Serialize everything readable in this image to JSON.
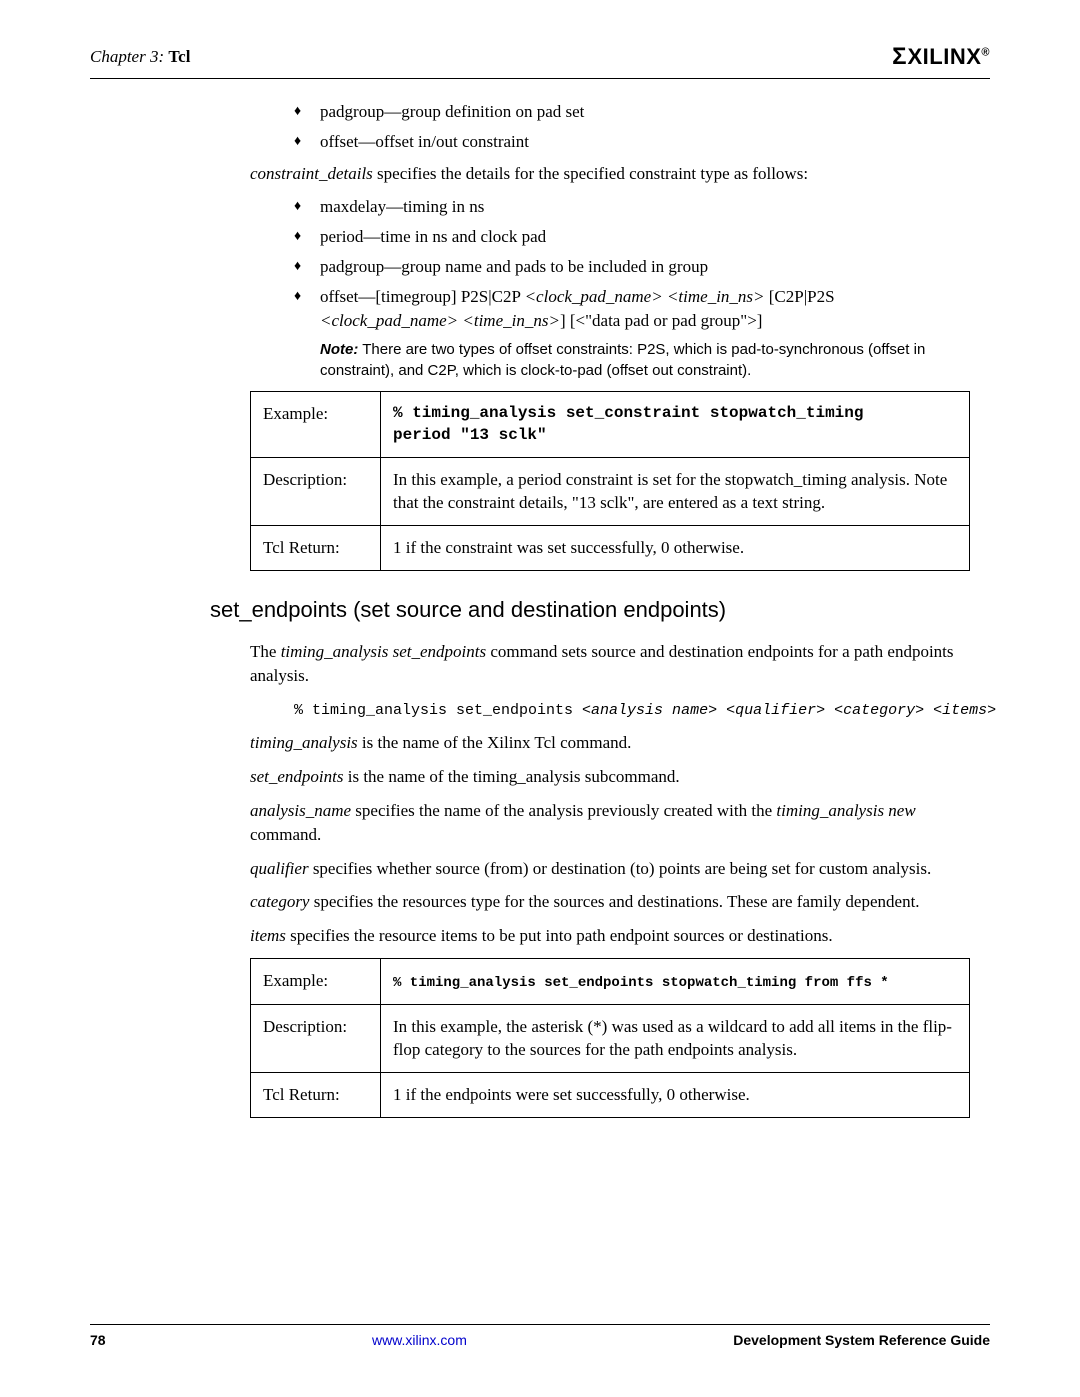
{
  "header": {
    "chapter_prefix": "Chapter 3:",
    "chapter_title": "Tcl",
    "logo_text": "XILINX",
    "logo_reg": "®"
  },
  "bullets_top": [
    "padgroup—group definition on pad set",
    "offset—offset in/out constraint"
  ],
  "constraint_details_intro_pre": "constraint_details",
  "constraint_details_intro_post": " specifies the details for the specified constraint type as follows:",
  "bullets_details": [
    {
      "text": "maxdelay—timing in ns"
    },
    {
      "text": "period—time in ns and clock pad"
    },
    {
      "text": "padgroup—group name and pads to be included in group"
    }
  ],
  "offset_bullet": {
    "pre": "offset—[timegroup] P2S|C2P ",
    "i1": "<clock_pad_name> <time_in_ns>",
    "mid": " [C2P|P2S ",
    "i2": "<clock_pad_name> <time_in_ns>",
    "post": "] [<\"data pad or pad group\">]"
  },
  "note": {
    "label": "Note:",
    "text": "  There are two types of offset constraints: P2S, which is pad-to-synchronous (offset in constraint), and C2P, which is clock-to-pad (offset out constraint)."
  },
  "table1": {
    "r1_label": "Example:",
    "r1_code_l1": "% timing_analysis set_constraint stopwatch_timing",
    "r1_code_l2": "period \"13 sclk\"",
    "r2_label": "Description:",
    "r2_text": "In this example, a period constraint is set for the stopwatch_timing analysis. Note that the constraint details, \"13 sclk\", are entered as a text string.",
    "r3_label": "Tcl Return:",
    "r3_text": "1 if the constraint was set successfully, 0 otherwise."
  },
  "section_heading": "set_endpoints (set source and destination endpoints)",
  "se_intro_pre": "The ",
  "se_intro_em": "timing_analysis set_endpoints",
  "se_intro_post": " command sets source and destination endpoints for a path endpoints analysis.",
  "se_code": {
    "plain": "% timing_analysis set_endpoints ",
    "ital": "<analysis name> <qualifier> <category> <items>"
  },
  "se_p1_em": "timing_analysis",
  "se_p1_post": " is the name of the Xilinx Tcl command.",
  "se_p2_em": "set_endpoints",
  "se_p2_post": " is the name of the timing_analysis subcommand.",
  "se_p3_em1": "analysis_name",
  "se_p3_mid": " specifies the name of the analysis previously created with the ",
  "se_p3_em2": "timing_analysis new",
  "se_p3_post": " command.",
  "se_p4_em": "qualifier",
  "se_p4_post": " specifies whether source (from) or destination (to) points are being set for custom analysis.",
  "se_p5_em": "category",
  "se_p5_post": " specifies the resources type for the sources and destinations. These are family dependent.",
  "se_p6_em": "items",
  "se_p6_post": " specifies the resource items to be put into path endpoint sources or destinations.",
  "table2": {
    "r1_label": "Example:",
    "r1_code": "% timing_analysis set_endpoints stopwatch_timing from ffs *",
    "r2_label": "Description:",
    "r2_text": "In this example, the asterisk (*) was used as a wildcard to add all items in the flip-flop category to the sources for the path endpoints analysis.",
    "r3_label": "Tcl Return:",
    "r3_text": "1 if the endpoints were set successfully, 0 otherwise."
  },
  "footer": {
    "page": "78",
    "url": "www.xilinx.com",
    "guide": "Development System Reference Guide"
  }
}
